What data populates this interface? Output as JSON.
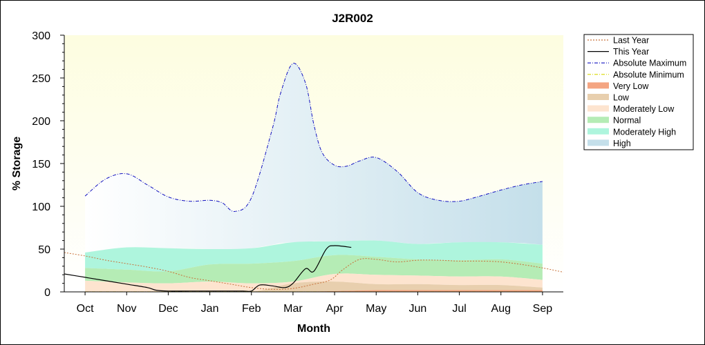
{
  "chart_data": {
    "type": "area",
    "title": "J2R002",
    "xlabel": "Month",
    "ylabel": "% Storage",
    "xlim": [
      -0.5,
      11.5
    ],
    "ylim": [
      0,
      300
    ],
    "yticks": [
      0,
      50,
      100,
      150,
      200,
      250,
      300
    ],
    "categories": [
      "Oct",
      "Nov",
      "Dec",
      "Jan",
      "Feb",
      "Mar",
      "Apr",
      "May",
      "Jun",
      "Jul",
      "Aug",
      "Sep"
    ],
    "grid": false,
    "legend_position": "right",
    "colors": {
      "plot_bg_top": "#fdfde0",
      "plot_bg_bottom": "#ffffff",
      "very_low": "#f4a582",
      "low": "#e8cfae",
      "moderately_low": "#fde4cf",
      "normal": "#b5ecb5",
      "moderately_high": "#aef5dd",
      "high": "#c4dfea",
      "last_year": "#c8703a",
      "this_year": "#000000",
      "abs_max": "#1010c0",
      "abs_min": "#d8d800"
    },
    "series": [
      {
        "name": "Last Year",
        "style": "dotted",
        "x": [
          -0.5,
          0,
          0.5,
          1,
          1.5,
          2,
          2.5,
          3,
          3.5,
          4,
          4.5,
          5,
          5.5,
          5.9,
          6.2,
          6.6,
          7,
          7.5,
          8,
          8.5,
          9,
          9.5,
          10,
          10.5,
          11,
          11.5
        ],
        "y": [
          46,
          42,
          37,
          33,
          29,
          24,
          17,
          13,
          9,
          5,
          3,
          4,
          9,
          14,
          26,
          38,
          38,
          35,
          37,
          37,
          36,
          36,
          35,
          32,
          28,
          23
        ]
      },
      {
        "name": "This Year",
        "style": "solid",
        "x": [
          -0.5,
          0,
          0.5,
          1,
          1.5,
          1.7,
          2,
          2.5,
          3,
          3.5,
          3.8,
          4,
          4.2,
          4.5,
          4.8,
          5,
          5.3,
          5.5,
          5.8,
          6,
          6.4
        ],
        "y": [
          21,
          17,
          13,
          9,
          5,
          2,
          1,
          1,
          1,
          1,
          1,
          1,
          8,
          7,
          5,
          10,
          27,
          24,
          50,
          54,
          52
        ]
      },
      {
        "name": "Absolute Maximum",
        "style": "dashdot",
        "x": [
          0,
          0.5,
          1,
          1.5,
          2,
          2.5,
          3,
          3.3,
          3.6,
          4,
          4.5,
          4.7,
          5,
          5.3,
          5.5,
          5.7,
          6,
          6.3,
          6.6,
          7,
          7.5,
          8,
          8.5,
          9,
          9.5,
          10,
          10.5,
          11
        ],
        "y": [
          112,
          132,
          138,
          125,
          111,
          106,
          107,
          104,
          94,
          110,
          190,
          232,
          267,
          244,
          196,
          163,
          148,
          147,
          153,
          157,
          141,
          116,
          107,
          106,
          112,
          119,
          125,
          129
        ]
      },
      {
        "name": "Absolute Minimum",
        "style": "dashdot",
        "x": [
          0,
          11
        ],
        "y": [
          0,
          0
        ]
      }
    ],
    "bands": [
      {
        "name": "Very Low",
        "x": [
          0,
          1,
          2,
          3,
          4,
          5,
          6,
          7,
          8,
          9,
          10,
          11
        ],
        "lower": [
          0,
          0,
          0,
          0,
          0,
          0,
          0,
          0,
          0,
          0,
          0,
          0
        ],
        "upper": [
          0,
          0,
          0,
          0,
          0,
          0,
          1,
          2,
          2,
          2,
          2,
          2
        ]
      },
      {
        "name": "Low",
        "x": [
          0,
          1,
          2,
          3,
          4,
          5,
          6,
          7,
          8,
          9,
          10,
          11
        ],
        "lower": [
          0,
          0,
          0,
          0,
          0,
          0,
          1,
          2,
          2,
          2,
          2,
          2
        ],
        "upper": [
          0,
          0,
          0,
          0,
          0,
          10,
          12,
          9,
          9,
          8,
          8,
          5
        ]
      },
      {
        "name": "Moderately Low",
        "x": [
          0,
          1,
          2,
          3,
          4,
          5,
          6,
          7,
          8,
          9,
          10,
          11
        ],
        "lower": [
          0,
          0,
          0,
          0,
          0,
          10,
          12,
          9,
          9,
          8,
          8,
          5
        ],
        "upper": [
          13,
          11,
          10,
          12,
          10,
          12,
          21,
          20,
          19,
          18,
          18,
          14
        ]
      },
      {
        "name": "Normal",
        "x": [
          0,
          1,
          2,
          3,
          4,
          5,
          6,
          7,
          8,
          9,
          10,
          11
        ],
        "lower": [
          13,
          11,
          10,
          12,
          10,
          12,
          21,
          20,
          19,
          18,
          18,
          14
        ],
        "upper": [
          28,
          26,
          24,
          32,
          33,
          36,
          43,
          41,
          38,
          37,
          38,
          33
        ]
      },
      {
        "name": "Moderately High",
        "x": [
          0,
          1,
          2,
          3,
          4,
          5,
          6,
          7,
          8,
          9,
          10,
          11
        ],
        "lower": [
          28,
          26,
          24,
          32,
          33,
          36,
          43,
          41,
          38,
          37,
          38,
          33
        ],
        "upper": [
          46,
          52,
          51,
          50,
          51,
          58,
          59,
          60,
          56,
          58,
          58,
          55
        ]
      },
      {
        "name": "High",
        "x": [
          0,
          0.5,
          1,
          1.5,
          2,
          2.5,
          3,
          3.3,
          3.6,
          4,
          4.5,
          4.7,
          5,
          5.3,
          5.5,
          5.7,
          6,
          6.3,
          6.6,
          7,
          7.5,
          8,
          8.5,
          9,
          9.5,
          10,
          10.5,
          11
        ],
        "lower": [
          46,
          49,
          52,
          52,
          51,
          51,
          50,
          50,
          50,
          51,
          55,
          57,
          58,
          58,
          59,
          59,
          59,
          59,
          60,
          60,
          58,
          56,
          57,
          58,
          58,
          58,
          57,
          55
        ],
        "upper": [
          112,
          132,
          138,
          125,
          111,
          106,
          107,
          104,
          94,
          110,
          190,
          232,
          267,
          244,
          196,
          163,
          148,
          147,
          153,
          157,
          141,
          116,
          107,
          106,
          112,
          119,
          125,
          129
        ]
      }
    ],
    "legend": [
      {
        "label": "Last Year",
        "kind": "line",
        "style": "dotted",
        "color": "#c8703a"
      },
      {
        "label": "This Year",
        "kind": "line",
        "style": "solid",
        "color": "#000000"
      },
      {
        "label": "Absolute Maximum",
        "kind": "line",
        "style": "dashdot",
        "color": "#1010c0"
      },
      {
        "label": "Absolute Minimum",
        "kind": "line",
        "style": "dashdot",
        "color": "#d8d800"
      },
      {
        "label": "Very Low",
        "kind": "band",
        "color": "#f4a582"
      },
      {
        "label": "Low",
        "kind": "band",
        "color": "#e8cfae"
      },
      {
        "label": "Moderately Low",
        "kind": "band",
        "color": "#fde4cf"
      },
      {
        "label": "Normal",
        "kind": "band",
        "color": "#b5ecb5"
      },
      {
        "label": "Moderately High",
        "kind": "band",
        "color": "#aef5dd"
      },
      {
        "label": "High",
        "kind": "band",
        "color": "#c4dfea"
      }
    ]
  }
}
